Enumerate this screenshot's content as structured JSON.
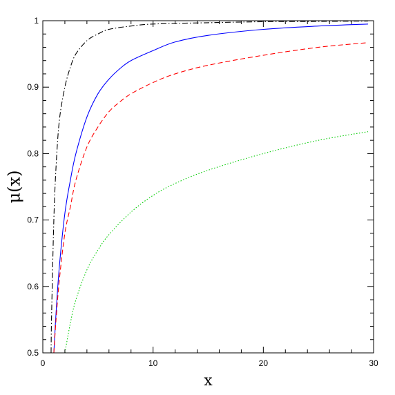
{
  "chart_data": {
    "type": "line",
    "title": "",
    "xlabel": "x",
    "ylabel": "μ(x)",
    "xlim": [
      0,
      30
    ],
    "ylim": [
      0.5,
      1.0
    ],
    "xticks": [
      0,
      10,
      20,
      30
    ],
    "xtick_labels": [
      "0",
      "10",
      "20",
      "30"
    ],
    "yticks": [
      0.5,
      0.6,
      0.7,
      0.8,
      0.9,
      1.0
    ],
    "ytick_labels": [
      "0.5",
      "0.6",
      "0.7",
      "0.8",
      "0.9",
      "1"
    ],
    "grid": false,
    "legend": "none",
    "series": [
      {
        "style": "dash-dot",
        "color": "#000000",
        "x": [
          0.75,
          0.8,
          1.0,
          1.2,
          1.5,
          2.0,
          2.5,
          3.0,
          4.0,
          5.0,
          6.0,
          8.0,
          10.0,
          15.0,
          20.0,
          25.0,
          29.5
        ],
        "y": [
          0.5,
          0.56,
          0.7,
          0.78,
          0.85,
          0.9,
          0.93,
          0.95,
          0.97,
          0.98,
          0.987,
          0.992,
          0.995,
          0.997,
          0.9985,
          0.999,
          0.9995
        ]
      },
      {
        "style": "solid",
        "color": "#0000ff",
        "x": [
          1.0,
          1.2,
          1.5,
          2.0,
          2.5,
          3.0,
          4.0,
          5.0,
          6.0,
          7.0,
          8.0,
          10.0,
          12.0,
          15.0,
          20.0,
          25.0,
          29.5
        ],
        "y": [
          0.5,
          0.56,
          0.63,
          0.71,
          0.76,
          0.8,
          0.855,
          0.89,
          0.912,
          0.928,
          0.94,
          0.955,
          0.968,
          0.978,
          0.987,
          0.992,
          0.995
        ]
      },
      {
        "style": "dashed",
        "color": "#ff0000",
        "x": [
          1.0,
          1.2,
          1.5,
          2.0,
          2.5,
          3.0,
          4.0,
          5.0,
          6.0,
          7.0,
          8.0,
          10.0,
          12.0,
          15.0,
          20.0,
          25.0,
          29.5
        ],
        "y": [
          0.5,
          0.55,
          0.61,
          0.68,
          0.72,
          0.76,
          0.81,
          0.84,
          0.863,
          0.878,
          0.89,
          0.907,
          0.92,
          0.933,
          0.948,
          0.96,
          0.967
        ]
      },
      {
        "style": "dotted",
        "color": "#00cc00",
        "x": [
          2.0,
          2.5,
          3.0,
          4.0,
          5.0,
          6.0,
          8.0,
          10.0,
          12.0,
          15.0,
          20.0,
          25.0,
          29.5
        ],
        "y": [
          0.5,
          0.545,
          0.58,
          0.625,
          0.655,
          0.678,
          0.712,
          0.737,
          0.755,
          0.775,
          0.8,
          0.82,
          0.833
        ]
      }
    ]
  }
}
